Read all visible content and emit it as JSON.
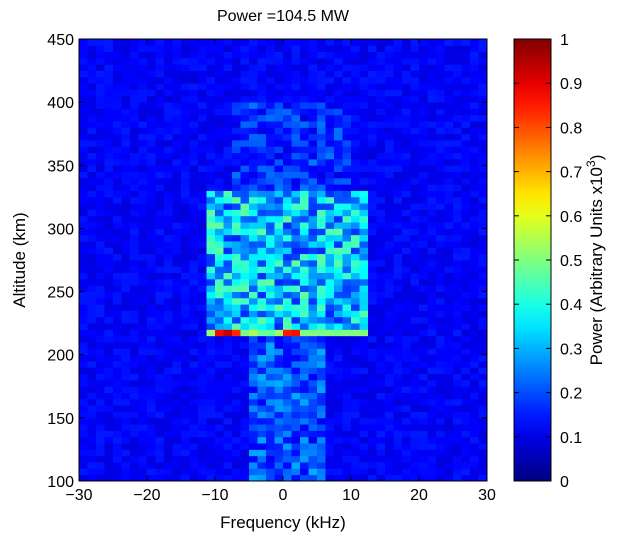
{
  "chart_data": {
    "type": "heatmap",
    "title": "Power =104.5 MW",
    "xlabel": "Frequency (kHz)",
    "ylabel": "Altitude (km)",
    "colorbar_label": "Power (Arbitrary Units x10",
    "colorbar_label_sup": "3",
    "colorbar_label_end": ")",
    "xlim": [
      -30,
      30
    ],
    "ylim": [
      100,
      450
    ],
    "clim": [
      0,
      1
    ],
    "colormap": "jet",
    "grid": false,
    "x_ticks": [
      {
        "value": -30,
        "label": "−30"
      },
      {
        "value": -20,
        "label": "−20"
      },
      {
        "value": -10,
        "label": "−10"
      },
      {
        "value": 0,
        "label": "0"
      },
      {
        "value": 10,
        "label": "10"
      },
      {
        "value": 20,
        "label": "20"
      },
      {
        "value": 30,
        "label": "30"
      }
    ],
    "y_ticks": [
      {
        "value": 100,
        "label": "100"
      },
      {
        "value": 150,
        "label": "150"
      },
      {
        "value": 200,
        "label": "200"
      },
      {
        "value": 250,
        "label": "250"
      },
      {
        "value": 300,
        "label": "300"
      },
      {
        "value": 350,
        "label": "350"
      },
      {
        "value": 400,
        "label": "400"
      },
      {
        "value": 450,
        "label": "450"
      }
    ],
    "c_ticks": [
      {
        "value": 0,
        "label": "0"
      },
      {
        "value": 0.1,
        "label": "0.1"
      },
      {
        "value": 0.2,
        "label": "0.2"
      },
      {
        "value": 0.3,
        "label": "0.3"
      },
      {
        "value": 0.4,
        "label": "0.4"
      },
      {
        "value": 0.5,
        "label": "0.5"
      },
      {
        "value": 0.6,
        "label": "0.6"
      },
      {
        "value": 0.7,
        "label": "0.7"
      },
      {
        "value": 0.8,
        "label": "0.8"
      },
      {
        "value": 0.9,
        "label": "0.9"
      },
      {
        "value": 1,
        "label": "1"
      }
    ],
    "hot_spots": [
      {
        "x_range": [
          -10.5,
          -6.5
        ],
        "y_range": [
          216,
          222
        ],
        "value": 0.95
      },
      {
        "x_range": [
          0,
          2
        ],
        "y_range": [
          216,
          222
        ],
        "value": 0.92
      },
      {
        "x_range": [
          -11,
          12
        ],
        "y_range": [
          215,
          222
        ],
        "value": 0.55
      }
    ],
    "regions": [
      {
        "name": "background",
        "x_range": [
          -30,
          30
        ],
        "y_range": [
          100,
          450
        ],
        "value": 0.12
      },
      {
        "name": "central-column",
        "x_range": [
          -11,
          13
        ],
        "y_range": [
          222,
          330
        ],
        "value": 0.35
      },
      {
        "name": "lower-plume",
        "x_range": [
          -5,
          6
        ],
        "y_range": [
          100,
          215
        ],
        "value": 0.22
      },
      {
        "name": "upper-plume",
        "x_range": [
          -8,
          10
        ],
        "y_range": [
          330,
          400
        ],
        "value": 0.18
      }
    ]
  }
}
